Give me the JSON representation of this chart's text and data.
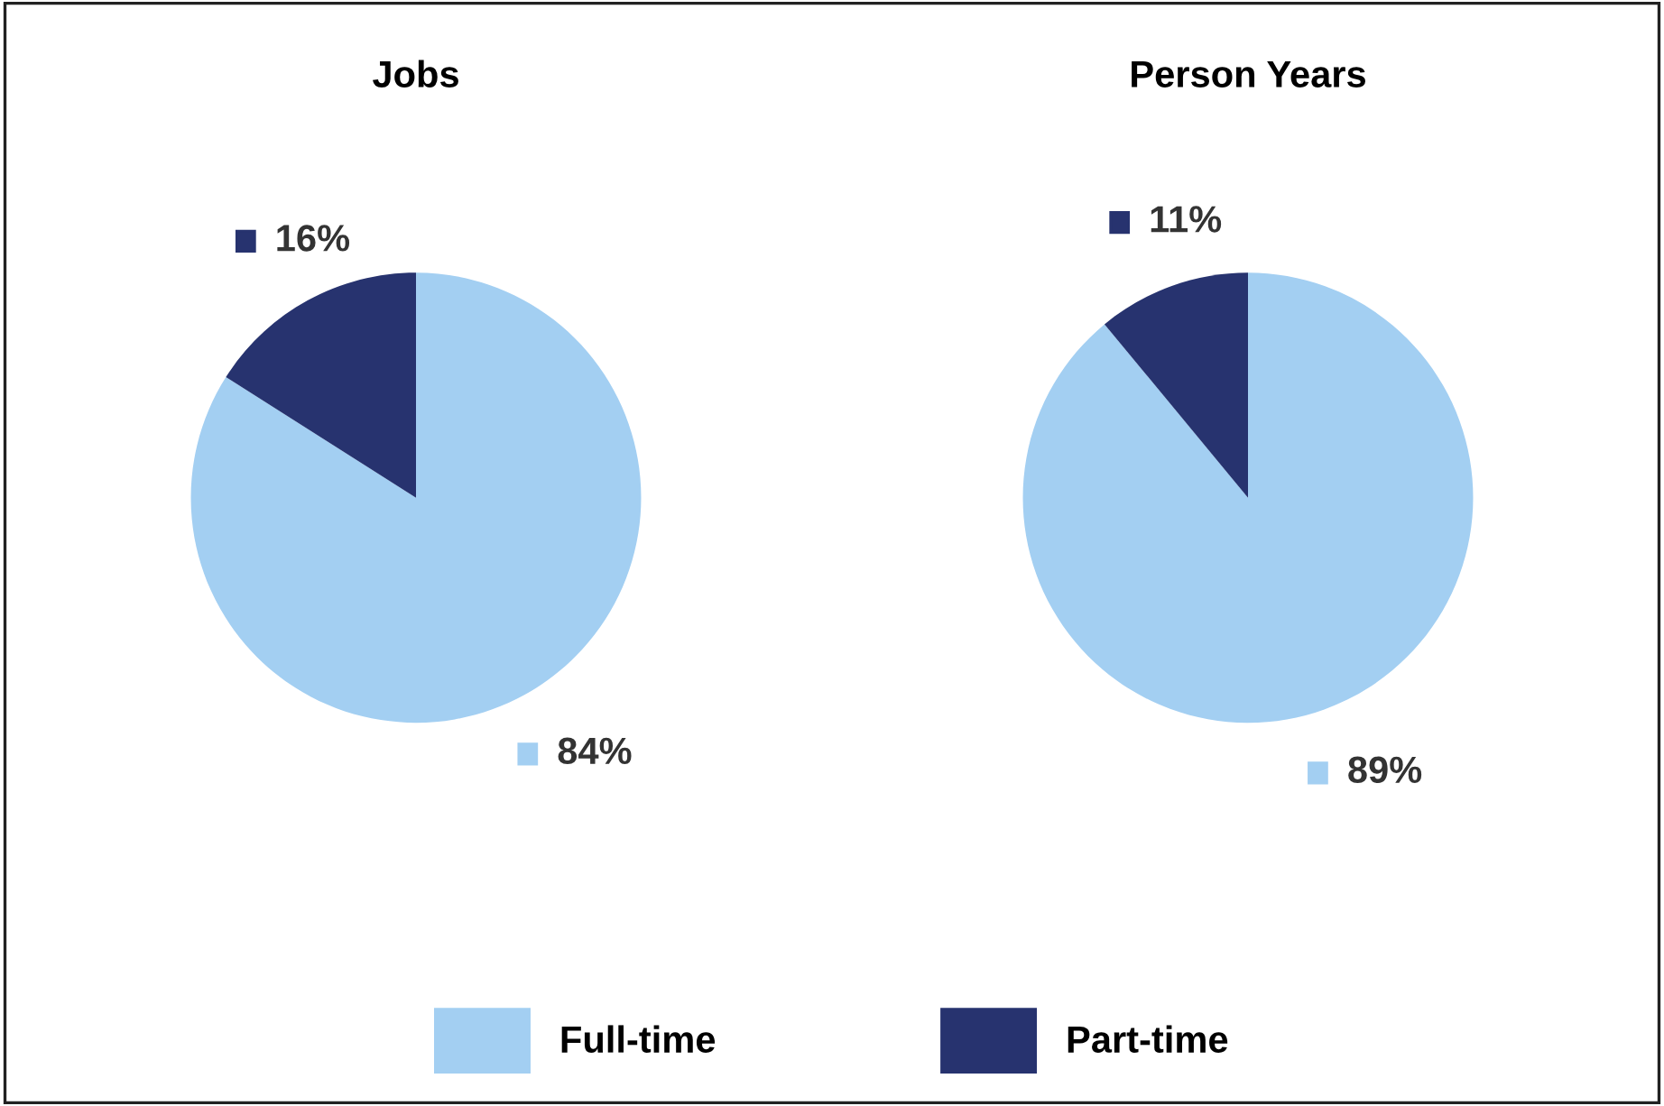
{
  "chart_data": [
    {
      "type": "pie",
      "title": "Jobs",
      "categories": [
        "Full-time",
        "Part-time"
      ],
      "values": [
        84,
        16
      ],
      "colors": [
        "#a3cff2",
        "#27336f"
      ],
      "value_labels": [
        "84%",
        "16%"
      ],
      "legend": "bottom"
    },
    {
      "type": "pie",
      "title": "Person Years",
      "categories": [
        null,
        null
      ],
      "values": [
        89,
        11
      ],
      "colors": [
        "#a3cff2",
        "#27336f"
      ],
      "value_labels": [
        "89%",
        "11%"
      ]
    }
  ]
}
